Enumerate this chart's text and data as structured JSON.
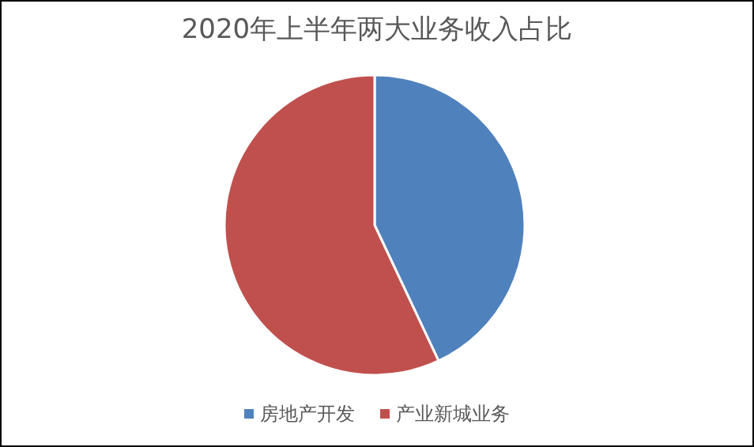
{
  "chart_data": {
    "type": "pie",
    "title": "2020年上半年两大业务收入占比",
    "categories": [
      "房地产开发",
      "产业新城业务"
    ],
    "values": [
      43,
      57
    ],
    "colors": [
      "#4f81bd",
      "#c0504d"
    ],
    "legend": "bottom"
  }
}
